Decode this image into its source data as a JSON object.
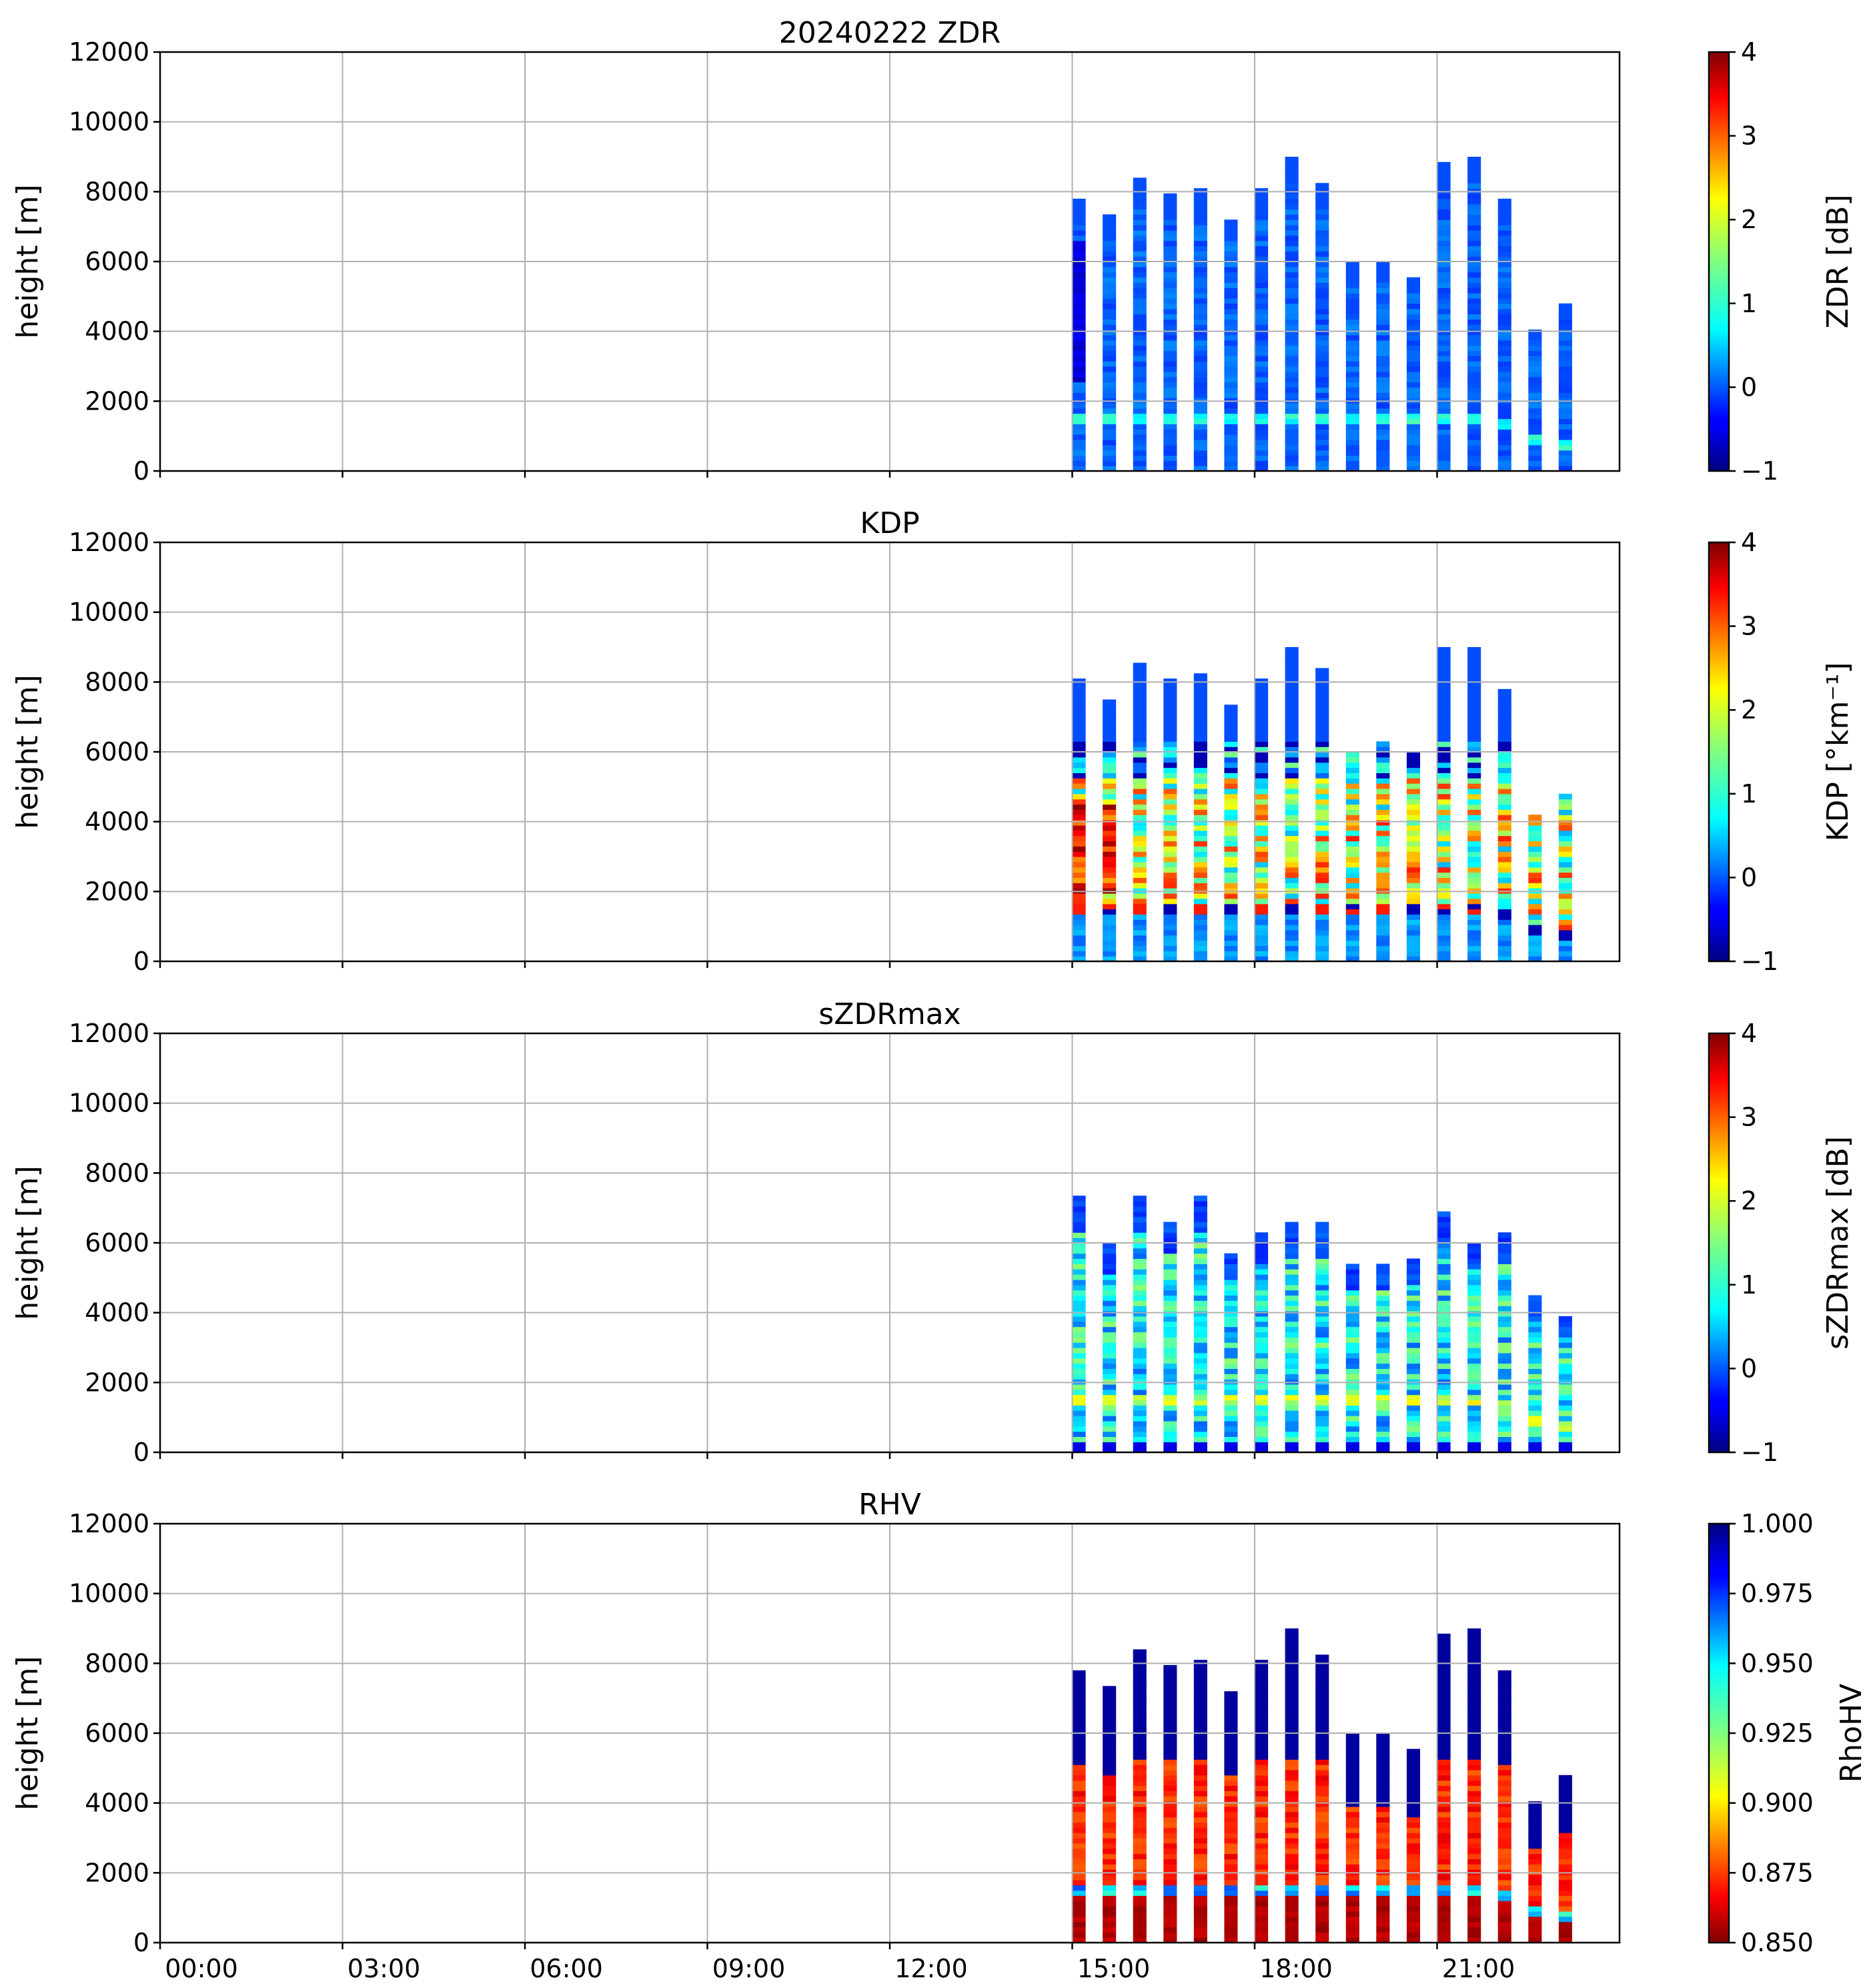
{
  "chart_data": [
    {
      "type": "heatmap",
      "title": "20240222 ZDR",
      "ylabel": "height [m]",
      "ylim": [
        0,
        12000
      ],
      "yticks": [
        "0",
        "2000",
        "4000",
        "6000",
        "8000",
        "10000",
        "12000"
      ],
      "xlim_hours": [
        0,
        24
      ],
      "grid": true,
      "colormap": "jet",
      "colorbar": {
        "label": "ZDR [dB]",
        "range": [
          -1,
          4
        ],
        "ticks": [
          "−1",
          "0",
          "1",
          "2",
          "3",
          "4"
        ]
      }
    },
    {
      "type": "heatmap",
      "title": "KDP",
      "ylabel": "height [m]",
      "ylim": [
        0,
        12000
      ],
      "yticks": [
        "0",
        "2000",
        "4000",
        "6000",
        "8000",
        "10000",
        "12000"
      ],
      "xlim_hours": [
        0,
        24
      ],
      "grid": true,
      "colormap": "jet",
      "colorbar": {
        "label": "KDP [°km⁻¹]",
        "range": [
          -1,
          4
        ],
        "ticks": [
          "−1",
          "0",
          "1",
          "2",
          "3",
          "4"
        ]
      }
    },
    {
      "type": "heatmap",
      "title": "sZDRmax",
      "ylabel": "height [m]",
      "ylim": [
        0,
        12000
      ],
      "yticks": [
        "0",
        "2000",
        "4000",
        "6000",
        "8000",
        "10000",
        "12000"
      ],
      "xlim_hours": [
        0,
        24
      ],
      "grid": true,
      "colormap": "jet",
      "colorbar": {
        "label": "sZDRmax [dB]",
        "range": [
          -1,
          4
        ],
        "ticks": [
          "−1",
          "0",
          "1",
          "2",
          "3",
          "4"
        ]
      }
    },
    {
      "type": "heatmap",
      "title": "RHV",
      "ylabel": "height [m]",
      "ylim": [
        0,
        12000
      ],
      "yticks": [
        "0",
        "2000",
        "4000",
        "6000",
        "8000",
        "10000",
        "12000"
      ],
      "xlim_hours": [
        0,
        24
      ],
      "xticks": [
        "00:00",
        "03:00",
        "06:00",
        "09:00",
        "12:00",
        "15:00",
        "18:00",
        "21:00"
      ],
      "grid": true,
      "colormap": "jet_r",
      "colorbar": {
        "label": "RhoHV",
        "range": [
          0.85,
          1.0
        ],
        "ticks": [
          "0.850",
          "0.875",
          "0.900",
          "0.925",
          "0.950",
          "0.975",
          "1.000"
        ]
      }
    }
  ],
  "scans": {
    "start_hours": [
      15.0,
      15.5,
      16.0,
      16.5,
      17.0,
      17.5,
      18.0,
      18.5,
      19.0,
      19.5,
      20.0,
      20.5,
      21.0,
      21.5,
      22.0,
      22.5,
      23.0
    ],
    "duration_hours": 0.22,
    "zdr_tops_m": [
      7800,
      7300,
      8400,
      7900,
      8100,
      7200,
      8000,
      9000,
      8200,
      5900,
      5900,
      5500,
      8800,
      9000,
      7800,
      4000,
      4700
    ],
    "kdp_tops_m": [
      8000,
      7500,
      8500,
      8000,
      8200,
      7300,
      8100,
      9000,
      8300,
      6000,
      6200,
      6000,
      8900,
      9000,
      7800,
      4100,
      4700
    ],
    "szdr_tops_m": [
      7300,
      5900,
      7300,
      6600,
      7300,
      5700,
      6200,
      6500,
      6500,
      5400,
      5300,
      5500,
      6900,
      6000,
      6200,
      4400,
      3800
    ],
    "rhv_tops_m": [
      7800,
      7300,
      8400,
      7900,
      8100,
      7200,
      8000,
      9000,
      8200,
      5900,
      5900,
      5500,
      8800,
      9000,
      7800,
      4000,
      4700
    ],
    "melting_layer_m": [
      1400,
      1400,
      1400,
      1450,
      1450,
      1450,
      1400,
      1400,
      1450,
      1450,
      1400,
      1400,
      1400,
      1400,
      1300,
      800,
      700
    ]
  }
}
